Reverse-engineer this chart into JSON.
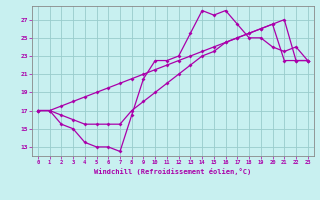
{
  "xlabel": "Windchill (Refroidissement éolien,°C)",
  "background_color": "#c8f0f0",
  "line_color": "#aa00aa",
  "grid_color": "#99cccc",
  "line1_x": [
    0,
    1,
    2,
    3,
    4,
    5,
    6,
    7,
    8,
    9,
    10,
    11,
    12,
    13,
    14,
    15,
    16,
    17,
    18,
    19,
    20,
    21,
    22,
    23
  ],
  "line1_y": [
    17.0,
    17.0,
    15.5,
    15.0,
    13.5,
    13.0,
    13.0,
    12.5,
    16.5,
    20.5,
    22.5,
    22.5,
    23.0,
    25.5,
    28.0,
    27.5,
    28.0,
    26.5,
    25.0,
    25.0,
    24.0,
    23.5,
    24.0,
    22.5
  ],
  "line2_x": [
    0,
    1,
    2,
    3,
    4,
    5,
    6,
    7,
    8,
    9,
    10,
    11,
    12,
    13,
    14,
    15,
    16,
    17,
    18,
    19,
    20,
    21,
    22,
    23
  ],
  "line2_y": [
    17.0,
    17.0,
    17.5,
    18.0,
    18.5,
    19.0,
    19.5,
    20.0,
    20.5,
    21.0,
    21.5,
    22.0,
    22.5,
    23.0,
    23.5,
    24.0,
    24.5,
    25.0,
    25.5,
    26.0,
    26.5,
    27.0,
    22.5,
    22.5
  ],
  "line3_x": [
    0,
    1,
    2,
    3,
    4,
    5,
    6,
    7,
    8,
    9,
    10,
    11,
    12,
    13,
    14,
    15,
    16,
    17,
    18,
    19,
    20,
    21,
    22,
    23
  ],
  "line3_y": [
    17.0,
    17.0,
    16.5,
    16.0,
    15.5,
    15.5,
    15.5,
    15.5,
    17.0,
    18.0,
    19.0,
    20.0,
    21.0,
    22.0,
    23.0,
    23.5,
    24.5,
    25.0,
    25.5,
    26.0,
    26.5,
    22.5,
    22.5,
    22.5
  ],
  "xlim": [
    -0.5,
    23.5
  ],
  "ylim": [
    12.0,
    28.5
  ],
  "yticks": [
    13,
    15,
    17,
    19,
    21,
    23,
    25,
    27
  ],
  "xticks": [
    0,
    1,
    2,
    3,
    4,
    5,
    6,
    7,
    8,
    9,
    10,
    11,
    12,
    13,
    14,
    15,
    16,
    17,
    18,
    19,
    20,
    21,
    22,
    23
  ]
}
